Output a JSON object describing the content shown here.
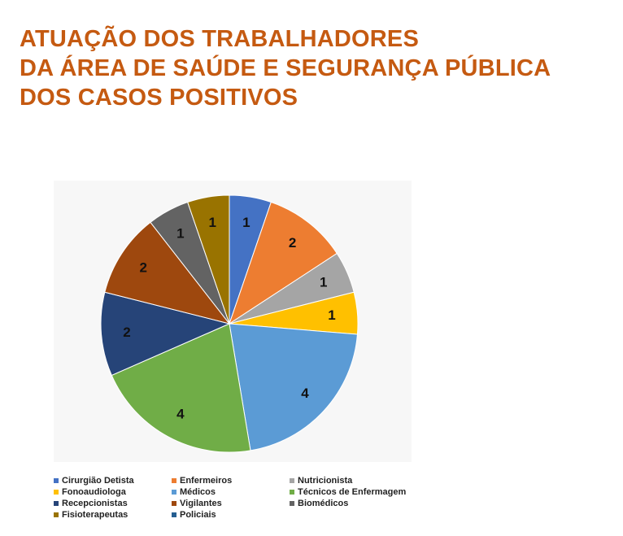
{
  "title_lines": [
    "ATUAÇÃO DOS TRABALHADORES",
    "DA ÁREA DE SAÚDE E SEGURANÇA PÚBLICA",
    "DOS CASOS POSITIVOS"
  ],
  "chart_data": {
    "type": "pie",
    "slices": [
      {
        "label": "Cirurgião Detista",
        "value": 1,
        "color": "#4472c4"
      },
      {
        "label": "Enfermeiros",
        "value": 2,
        "color": "#ed7d31"
      },
      {
        "label": "Nutricionista",
        "value": 1,
        "color": "#a5a5a5"
      },
      {
        "label": "Fonoaudiologa",
        "value": 1,
        "color": "#ffc000"
      },
      {
        "label": "Médicos",
        "value": 4,
        "color": "#5b9bd5"
      },
      {
        "label": "Técnicos de Enfermagem",
        "value": 4,
        "color": "#70ad47"
      },
      {
        "label": "Recepcionistas",
        "value": 2,
        "color": "#264478"
      },
      {
        "label": "Vigilantes",
        "value": 2,
        "color": "#9e480e"
      },
      {
        "label": "Biomédicos",
        "value": 1,
        "color": "#636363"
      },
      {
        "label": "Fisioterapeutas",
        "value": 1,
        "color": "#997300"
      },
      {
        "label": "Policiais",
        "value": 0,
        "color": "#255e91"
      }
    ],
    "data_labels": true,
    "legend_position": "bottom"
  }
}
